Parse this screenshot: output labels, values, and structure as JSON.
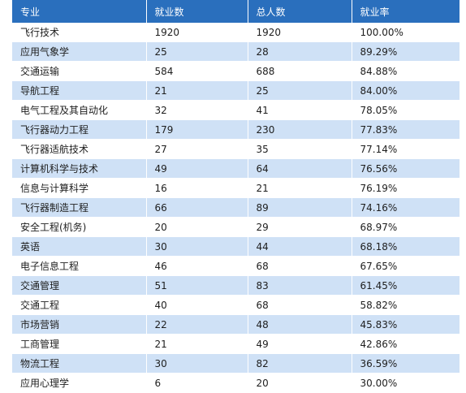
{
  "table": {
    "headers": [
      "专业",
      "就业数",
      "总人数",
      "就业率"
    ],
    "rows": [
      [
        "飞行技术",
        "1920",
        "1920",
        "100.00%"
      ],
      [
        "应用气象学",
        "25",
        "28",
        "89.29%"
      ],
      [
        "交通运输",
        "584",
        "688",
        "84.88%"
      ],
      [
        "导航工程",
        "21",
        "25",
        "84.00%"
      ],
      [
        "电气工程及其自动化",
        "32",
        "41",
        "78.05%"
      ],
      [
        "飞行器动力工程",
        "179",
        "230",
        "77.83%"
      ],
      [
        "飞行器适航技术",
        "27",
        "35",
        "77.14%"
      ],
      [
        "计算机科学与技术",
        "49",
        "64",
        "76.56%"
      ],
      [
        "信息与计算科学",
        "16",
        "21",
        "76.19%"
      ],
      [
        "飞行器制造工程",
        "66",
        "89",
        "74.16%"
      ],
      [
        "安全工程(机务)",
        "20",
        "29",
        "68.97%"
      ],
      [
        "英语",
        "30",
        "44",
        "68.18%"
      ],
      [
        "电子信息工程",
        "46",
        "68",
        "67.65%"
      ],
      [
        "交通管理",
        "51",
        "83",
        "61.45%"
      ],
      [
        "交通工程",
        "40",
        "68",
        "58.82%"
      ],
      [
        "市场营销",
        "22",
        "48",
        "45.83%"
      ],
      [
        "工商管理",
        "21",
        "49",
        "42.86%"
      ],
      [
        "物流工程",
        "30",
        "82",
        "36.59%"
      ],
      [
        "应用心理学",
        "6",
        "20",
        "30.00%"
      ]
    ]
  },
  "colors": {
    "header_bg": "#2a6fbd",
    "stripe_bg": "#cfe1f6",
    "text": "#1e1e1e"
  }
}
